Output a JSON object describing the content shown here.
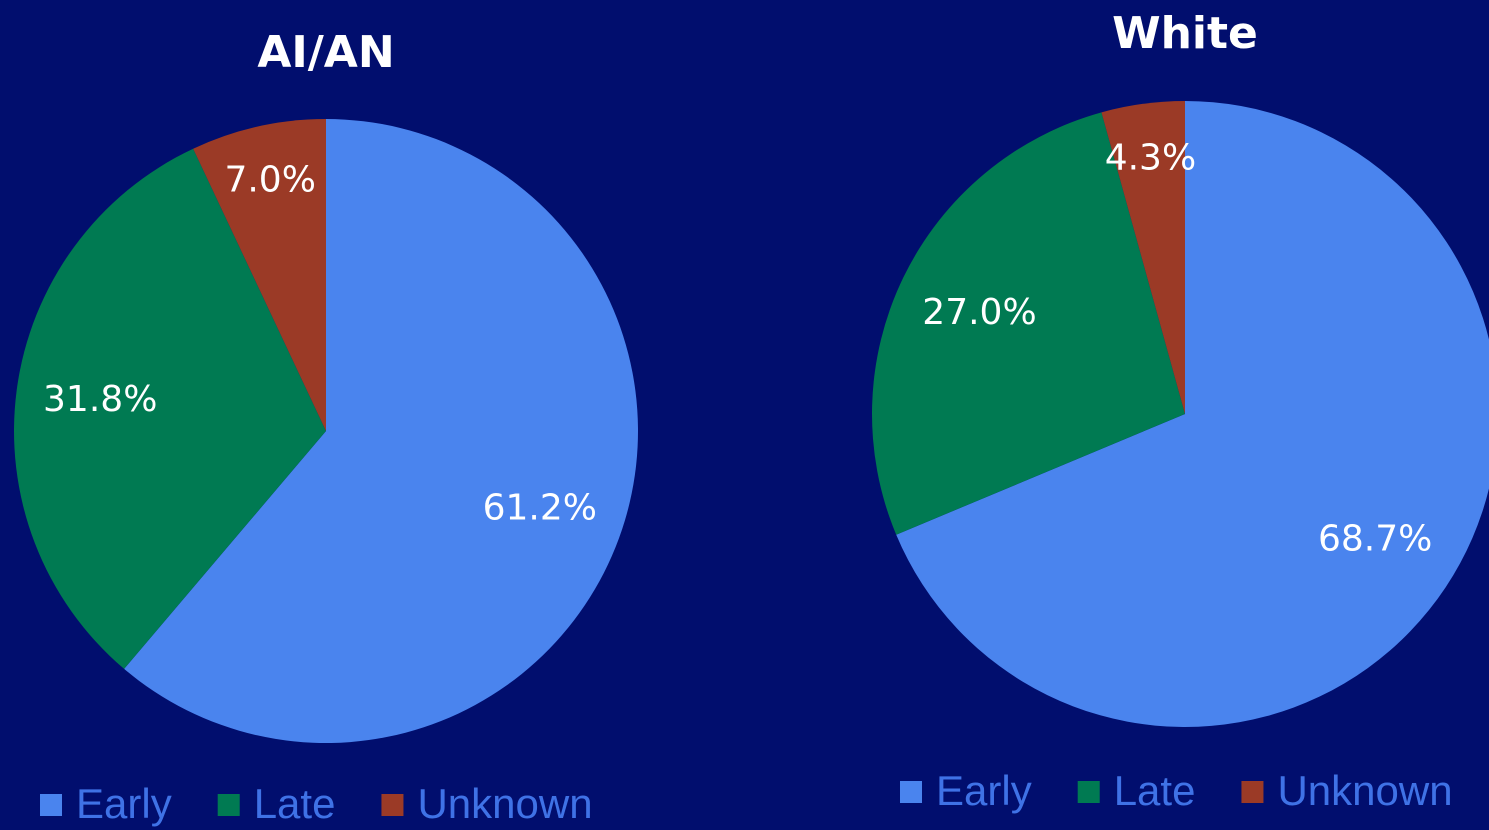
{
  "chart_data": [
    {
      "type": "pie",
      "title": "AI/AN",
      "categories": [
        "Early",
        "Late",
        "Unknown"
      ],
      "values": [
        61.2,
        31.8,
        7.0
      ],
      "value_labels": [
        "61.2%",
        "31.8%",
        "7.0%"
      ],
      "colors": [
        "#4a84ee",
        "#007a52",
        "#9b3a26"
      ]
    },
    {
      "type": "pie",
      "title": "White",
      "categories": [
        "Early",
        "Late",
        "Unknown"
      ],
      "values": [
        68.7,
        27.0,
        4.3
      ],
      "value_labels": [
        "68.7%",
        "27.0%",
        "4.3%"
      ],
      "colors": [
        "#4a84ee",
        "#007a52",
        "#9b3a26"
      ]
    }
  ]
}
